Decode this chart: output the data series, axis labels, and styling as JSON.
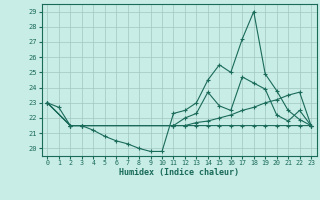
{
  "xlabel": "Humidex (Indice chaleur)",
  "bg_color": "#c8ece6",
  "grid_color": "#a0c8c0",
  "line_color": "#1a6b5a",
  "xlim": [
    -0.5,
    23.5
  ],
  "ylim": [
    19.5,
    29.5
  ],
  "xticks": [
    0,
    1,
    2,
    3,
    4,
    5,
    6,
    7,
    8,
    9,
    10,
    11,
    12,
    13,
    14,
    15,
    16,
    17,
    18,
    19,
    20,
    21,
    22,
    23
  ],
  "yticks": [
    20,
    21,
    22,
    23,
    24,
    25,
    26,
    27,
    28,
    29
  ],
  "lines": [
    {
      "x": [
        0,
        1,
        2,
        3,
        4,
        5,
        6,
        7,
        8,
        9,
        10,
        11,
        12,
        13,
        14,
        15,
        16,
        17,
        18,
        19,
        20,
        21,
        22,
        23
      ],
      "y": [
        23.0,
        22.7,
        21.5,
        21.5,
        21.2,
        20.8,
        20.5,
        20.3,
        20.0,
        19.8,
        19.8,
        22.3,
        22.5,
        23.0,
        24.5,
        25.5,
        25.0,
        27.2,
        29.0,
        24.9,
        23.8,
        22.5,
        21.9,
        21.5
      ]
    },
    {
      "x": [
        0,
        2,
        3,
        11,
        12,
        13,
        14,
        15,
        16,
        17,
        18,
        19,
        20,
        21,
        22,
        23
      ],
      "y": [
        23.0,
        21.5,
        21.5,
        21.5,
        22.0,
        22.3,
        23.7,
        22.8,
        22.5,
        24.7,
        24.3,
        23.9,
        22.2,
        21.8,
        22.5,
        21.5
      ]
    },
    {
      "x": [
        0,
        2,
        3,
        11,
        12,
        13,
        14,
        15,
        16,
        17,
        18,
        19,
        20,
        21,
        22,
        23
      ],
      "y": [
        23.0,
        21.5,
        21.5,
        21.5,
        21.5,
        21.7,
        21.8,
        22.0,
        22.2,
        22.5,
        22.7,
        23.0,
        23.2,
        23.5,
        23.7,
        21.5
      ]
    },
    {
      "x": [
        0,
        2,
        3,
        11,
        12,
        13,
        14,
        15,
        16,
        17,
        18,
        19,
        20,
        21,
        22,
        23
      ],
      "y": [
        23.0,
        21.5,
        21.5,
        21.5,
        21.5,
        21.5,
        21.5,
        21.5,
        21.5,
        21.5,
        21.5,
        21.5,
        21.5,
        21.5,
        21.5,
        21.5
      ]
    }
  ]
}
